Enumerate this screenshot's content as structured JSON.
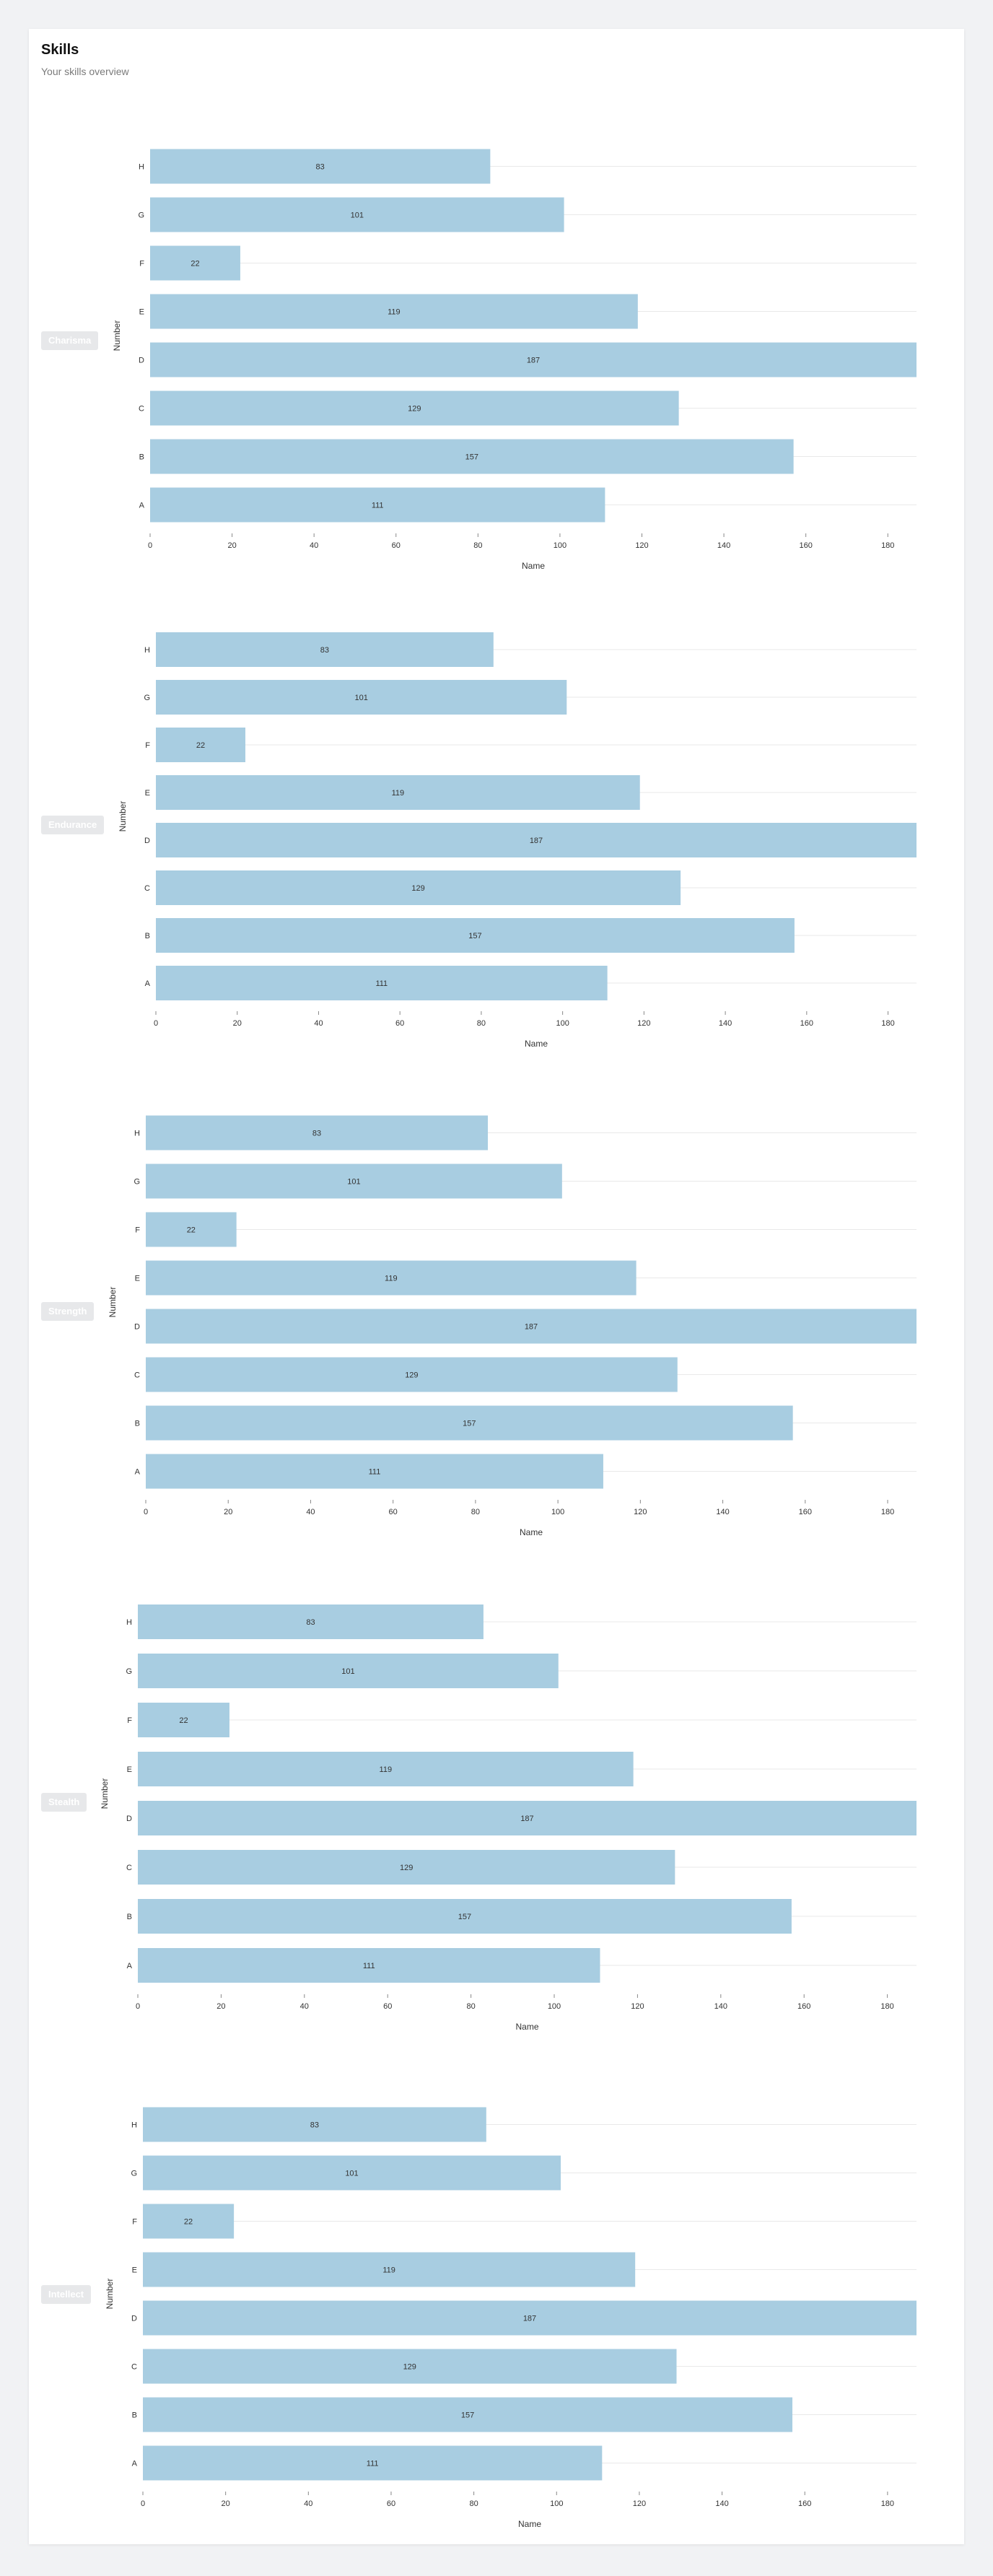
{
  "page": {
    "title": "Skills",
    "subtitle": "Your skills overview"
  },
  "colors": {
    "bar": "#a8cde1",
    "badge_bg": "#e7e8ea"
  },
  "chart_data": [
    {
      "type": "bar",
      "orientation": "horizontal",
      "skill": "Charisma",
      "categories": [
        "A",
        "B",
        "C",
        "D",
        "E",
        "F",
        "G",
        "H"
      ],
      "values": [
        111,
        157,
        129,
        187,
        119,
        22,
        101,
        83
      ],
      "xlabel": "Name",
      "ylabel": "Number",
      "xticks": [
        0,
        20,
        40,
        60,
        80,
        100,
        120,
        140,
        160,
        180
      ],
      "xlim": [
        0,
        187
      ],
      "grid": true,
      "data_labels": true
    },
    {
      "type": "bar",
      "orientation": "horizontal",
      "skill": "Endurance",
      "categories": [
        "A",
        "B",
        "C",
        "D",
        "E",
        "F",
        "G",
        "H"
      ],
      "values": [
        111,
        157,
        129,
        187,
        119,
        22,
        101,
        83
      ],
      "xlabel": "Name",
      "ylabel": "Number",
      "xticks": [
        0,
        20,
        40,
        60,
        80,
        100,
        120,
        140,
        160,
        180
      ],
      "xlim": [
        0,
        187
      ],
      "grid": true,
      "data_labels": true
    },
    {
      "type": "bar",
      "orientation": "horizontal",
      "skill": "Strength",
      "categories": [
        "A",
        "B",
        "C",
        "D",
        "E",
        "F",
        "G",
        "H"
      ],
      "values": [
        111,
        157,
        129,
        187,
        119,
        22,
        101,
        83
      ],
      "xlabel": "Name",
      "ylabel": "Number",
      "xticks": [
        0,
        20,
        40,
        60,
        80,
        100,
        120,
        140,
        160,
        180
      ],
      "xlim": [
        0,
        187
      ],
      "grid": true,
      "data_labels": true
    },
    {
      "type": "bar",
      "orientation": "horizontal",
      "skill": "Stealth",
      "categories": [
        "A",
        "B",
        "C",
        "D",
        "E",
        "F",
        "G",
        "H"
      ],
      "values": [
        111,
        157,
        129,
        187,
        119,
        22,
        101,
        83
      ],
      "xlabel": "Name",
      "ylabel": "Number",
      "xticks": [
        0,
        20,
        40,
        60,
        80,
        100,
        120,
        140,
        160,
        180
      ],
      "xlim": [
        0,
        187
      ],
      "grid": true,
      "data_labels": true
    },
    {
      "type": "bar",
      "orientation": "horizontal",
      "skill": "Intellect",
      "categories": [
        "A",
        "B",
        "C",
        "D",
        "E",
        "F",
        "G",
        "H"
      ],
      "values": [
        111,
        157,
        129,
        187,
        119,
        22,
        101,
        83
      ],
      "xlabel": "Name",
      "ylabel": "Number",
      "xticks": [
        0,
        20,
        40,
        60,
        80,
        100,
        120,
        140,
        160,
        180
      ],
      "xlim": [
        0,
        187
      ],
      "grid": true,
      "data_labels": true
    }
  ]
}
